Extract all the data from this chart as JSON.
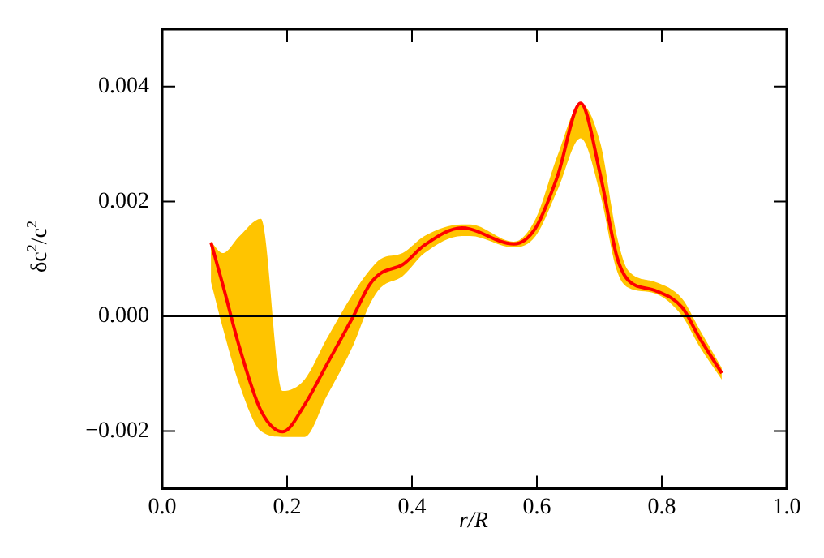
{
  "chart_data": {
    "type": "line",
    "xlabel": "r/R",
    "ylabel": "δc$^{2}$/c$^{2}$",
    "x": [
      0.078,
      0.097,
      0.124,
      0.158,
      0.193,
      0.228,
      0.263,
      0.306,
      0.332,
      0.35,
      0.385,
      0.42,
      0.48,
      0.493,
      0.563,
      0.598,
      0.633,
      0.67,
      0.702,
      0.728,
      0.746,
      0.789,
      0.833,
      0.859,
      0.896
    ],
    "series": [
      {
        "color": "#ff0000",
        "values": [
          0.00129,
          0.00055,
          -0.00055,
          -0.00164,
          -0.00201,
          -0.00154,
          -0.00085,
          0.0,
          0.00055,
          0.00075,
          0.0009,
          0.00124,
          0.00154,
          0.00152,
          0.00126,
          0.00154,
          0.00244,
          0.00371,
          0.00244,
          0.00104,
          0.00063,
          0.00045,
          0.00015,
          -0.00035,
          -0.00099
        ],
        "lower": [
          0.0006,
          -0.0002,
          -0.0012,
          -0.002,
          -0.0021,
          -0.0021,
          -0.0014,
          -0.0005,
          0.0002,
          0.0005,
          0.0007,
          0.0011,
          0.0014,
          0.0014,
          0.0012,
          0.0014,
          0.0022,
          0.0031,
          0.0021,
          0.0008,
          0.0005,
          0.0004,
          0.0,
          -0.0005,
          -0.0011
        ],
        "upper": [
          0.0013,
          0.0011,
          0.0014,
          0.0017,
          -0.0013,
          -0.0011,
          -0.0004,
          0.0004,
          0.0008,
          0.001,
          0.0011,
          0.0014,
          0.0016,
          0.0016,
          0.0013,
          0.0017,
          0.0028,
          0.0037,
          0.003,
          0.0014,
          0.0008,
          0.0006,
          0.0003,
          -0.0002,
          -0.0009
        ]
      }
    ],
    "xlim": [
      0.0,
      1.0
    ],
    "xticks": [
      {
        "value": 0.0,
        "label": "0.0"
      },
      {
        "value": 0.2,
        "label": "0.2"
      },
      {
        "value": 0.4,
        "label": "0.4"
      },
      {
        "value": 0.6,
        "label": "0.6"
      },
      {
        "value": 0.8,
        "label": "0.8"
      },
      {
        "value": 1.0,
        "label": "1.0"
      }
    ],
    "ylim": [
      -0.003,
      0.005
    ],
    "yticks": [
      {
        "value": -0.002,
        "label": "−0.002"
      },
      {
        "value": 0.0,
        "label": "0.000"
      },
      {
        "value": 0.002,
        "label": "0.002"
      },
      {
        "value": 0.004,
        "label": "0.004"
      }
    ],
    "ref_lines": [
      {
        "axis": "y",
        "value": 0,
        "color": "#000000"
      }
    ],
    "grid": false,
    "legend": false,
    "marker": "none",
    "line_style": "solid"
  }
}
